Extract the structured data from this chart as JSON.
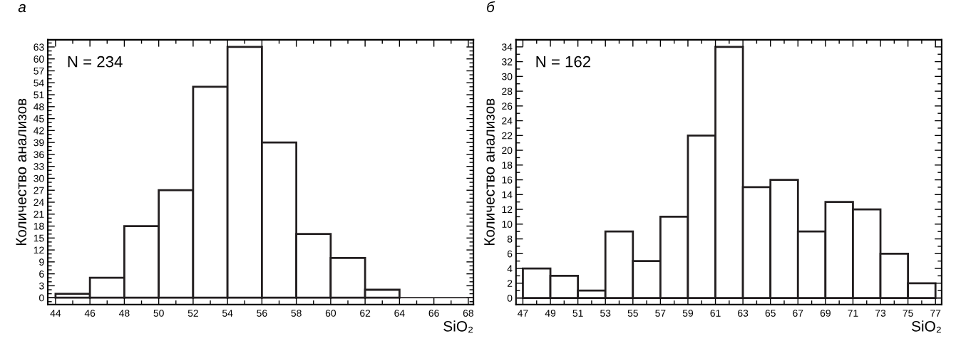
{
  "chart_data": [
    {
      "type": "histogram",
      "title": "а",
      "xlabel": "SiO₂",
      "ylabel": "Количество анализов",
      "annotations": [
        "N = 234"
      ],
      "bins": [
        44,
        46,
        48,
        50,
        52,
        54,
        56,
        58,
        60,
        62,
        64,
        66,
        68
      ],
      "values": [
        1,
        5,
        18,
        27,
        53,
        63,
        39,
        16,
        10,
        2,
        0,
        0
      ],
      "color": "#ffffff",
      "xlim": [
        43.55,
        68.3
      ],
      "ylim": [
        -1.7,
        64.8
      ],
      "xticks": [
        44,
        46,
        48,
        50,
        52,
        54,
        56,
        58,
        60,
        62,
        64,
        66,
        68
      ],
      "yticks": [
        0,
        3,
        6,
        9,
        12,
        15,
        18,
        21,
        24,
        27,
        30,
        33,
        36,
        39,
        42,
        45,
        48,
        51,
        54,
        57,
        60,
        63
      ],
      "ref_lines": [
        {
          "axis": "y",
          "value": 0,
          "label": null
        }
      ],
      "grid": false
    },
    {
      "type": "histogram",
      "title": "б",
      "xlabel": "SiO₂",
      "ylabel": "Количество анализов",
      "annotations": [
        "N = 162"
      ],
      "bins": [
        47,
        49,
        51,
        53,
        55,
        57,
        59,
        61,
        63,
        65,
        67,
        69,
        71,
        73,
        75,
        77
      ],
      "values": [
        4,
        3,
        1,
        9,
        5,
        11,
        22,
        34,
        15,
        16,
        9,
        13,
        12,
        6,
        2
      ],
      "color": "#ffffff",
      "xlim": [
        46.5,
        77.45
      ],
      "ylim": [
        -0.88,
        34.96
      ],
      "xticks": [
        47,
        49,
        51,
        53,
        55,
        57,
        59,
        61,
        63,
        65,
        67,
        69,
        71,
        73,
        75,
        77
      ],
      "yticks": [
        0,
        2,
        4,
        6,
        8,
        10,
        12,
        14,
        16,
        18,
        20,
        22,
        24,
        26,
        28,
        30,
        32,
        34
      ],
      "ref_lines": [
        {
          "axis": "y",
          "value": 0,
          "label": null
        }
      ],
      "grid": false
    }
  ]
}
